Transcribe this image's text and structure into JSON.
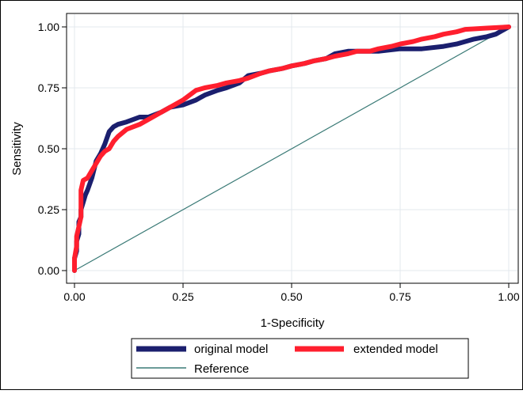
{
  "chart_data": {
    "type": "line",
    "title": "",
    "xlabel": "1-Specificity",
    "ylabel": "Sensitivity",
    "xlim": [
      0,
      1
    ],
    "ylim": [
      0,
      1
    ],
    "xticks": [
      "0.00",
      "0.25",
      "0.50",
      "0.75",
      "1.00"
    ],
    "yticks": [
      "0.00",
      "0.25",
      "0.50",
      "0.75",
      "1.00"
    ],
    "grid": true,
    "legend_position": "bottom",
    "colors": {
      "original": "#1b1f6e",
      "extended": "#ff1f2e",
      "reference": "#3a7a76"
    },
    "series": [
      {
        "name": "original model",
        "x": [
          0.0,
          0.0,
          0.005,
          0.005,
          0.01,
          0.01,
          0.015,
          0.015,
          0.02,
          0.025,
          0.03,
          0.04,
          0.05,
          0.06,
          0.07,
          0.08,
          0.09,
          0.1,
          0.12,
          0.15,
          0.17,
          0.2,
          0.22,
          0.25,
          0.28,
          0.3,
          0.33,
          0.35,
          0.38,
          0.4,
          0.43,
          0.45,
          0.48,
          0.5,
          0.53,
          0.55,
          0.58,
          0.6,
          0.63,
          0.65,
          0.7,
          0.75,
          0.8,
          0.85,
          0.88,
          0.9,
          0.92,
          0.95,
          0.97,
          1.0
        ],
        "y": [
          0.0,
          0.05,
          0.08,
          0.12,
          0.15,
          0.2,
          0.22,
          0.25,
          0.28,
          0.31,
          0.33,
          0.38,
          0.45,
          0.48,
          0.52,
          0.57,
          0.59,
          0.6,
          0.61,
          0.63,
          0.63,
          0.65,
          0.67,
          0.68,
          0.7,
          0.72,
          0.74,
          0.75,
          0.77,
          0.8,
          0.81,
          0.82,
          0.83,
          0.84,
          0.85,
          0.86,
          0.87,
          0.89,
          0.9,
          0.9,
          0.9,
          0.91,
          0.91,
          0.92,
          0.93,
          0.94,
          0.95,
          0.96,
          0.97,
          1.0
        ]
      },
      {
        "name": "extended model",
        "x": [
          0.0,
          0.0,
          0.005,
          0.005,
          0.01,
          0.015,
          0.015,
          0.02,
          0.03,
          0.04,
          0.05,
          0.06,
          0.07,
          0.08,
          0.09,
          0.1,
          0.12,
          0.15,
          0.18,
          0.2,
          0.22,
          0.25,
          0.28,
          0.3,
          0.33,
          0.35,
          0.38,
          0.4,
          0.43,
          0.45,
          0.48,
          0.5,
          0.53,
          0.55,
          0.58,
          0.6,
          0.63,
          0.65,
          0.68,
          0.7,
          0.73,
          0.75,
          0.78,
          0.8,
          0.83,
          0.85,
          0.88,
          0.9,
          0.95,
          1.0
        ],
        "y": [
          0.0,
          0.05,
          0.1,
          0.14,
          0.18,
          0.22,
          0.33,
          0.37,
          0.38,
          0.41,
          0.44,
          0.47,
          0.49,
          0.5,
          0.53,
          0.55,
          0.58,
          0.6,
          0.63,
          0.65,
          0.67,
          0.7,
          0.74,
          0.75,
          0.76,
          0.77,
          0.78,
          0.79,
          0.81,
          0.82,
          0.83,
          0.84,
          0.85,
          0.86,
          0.87,
          0.88,
          0.89,
          0.9,
          0.9,
          0.91,
          0.92,
          0.93,
          0.94,
          0.95,
          0.96,
          0.97,
          0.98,
          0.99,
          0.995,
          1.0
        ]
      },
      {
        "name": "Reference",
        "x": [
          0,
          1
        ],
        "y": [
          0,
          1
        ]
      }
    ]
  }
}
